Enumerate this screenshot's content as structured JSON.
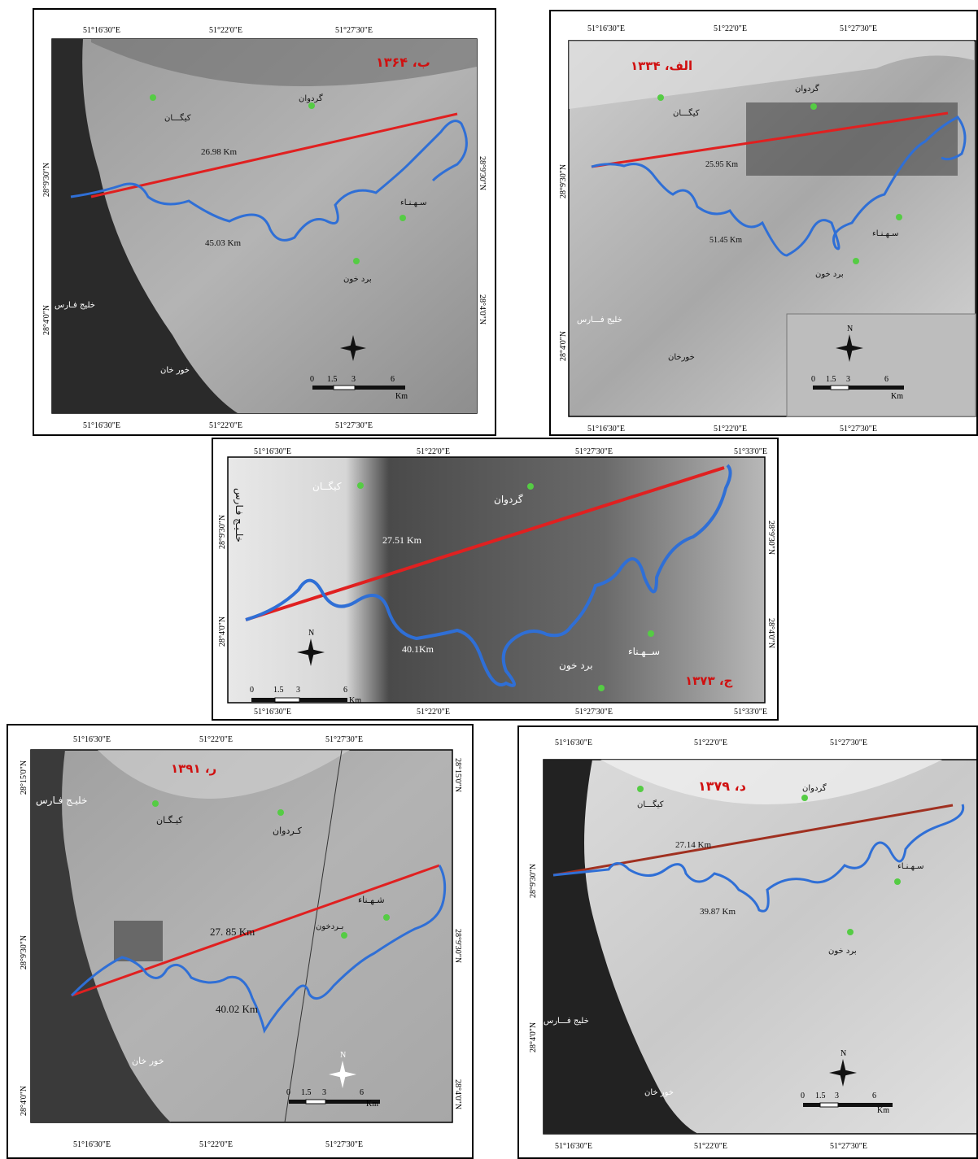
{
  "panels": {
    "b": {
      "title": "ب، ۱۳۶۴",
      "ticks_top": [
        "51°16'30\"E",
        "51°22'0\"E",
        "51°27'30\"E"
      ],
      "ticks_bottom": [
        "51°16'30\"E",
        "51°22'0\"E",
        "51°27'30\"E"
      ],
      "ticks_left": [
        "28°9'30\"N",
        "28°4'0\"N"
      ],
      "ticks_right": [
        "28°9'30\"N",
        "28°4'0\"N"
      ],
      "straight_distance": "26.98 Km",
      "river_distance": "45.03 Km",
      "places": {
        "kiyan": "کیگـــان",
        "gordavan": "گردوان",
        "sahnaa": "سـهـنـاء",
        "bardkhun": "برد خون",
        "gulf": "خلیج فـارس",
        "khurkhan": "خور خان"
      },
      "scale": [
        "0",
        "1.5",
        "3",
        "6",
        "Km"
      ]
    },
    "a": {
      "title": "الف، ۱۳۳۴",
      "ticks_top": [
        "51°16'30\"E",
        "51°22'0\"E",
        "51°27'30\"E"
      ],
      "ticks_bottom": [
        "51°16'30\"E",
        "51°22'0\"E",
        "51°27'30\"E"
      ],
      "ticks_left": [
        "28°9'30\"N",
        "28°4'0\"N"
      ],
      "ticks_right": [
        "28°9'30\"N",
        "28°4'0\"N"
      ],
      "straight_distance": "25.95 Km",
      "river_distance": "51.45 Km",
      "places": {
        "kiyan": "کیگـــان",
        "gordavan": "گردوان",
        "sahnaa": "سـهـنـاء",
        "bardkhun": "برد خون",
        "gulf": "خلیج فـــارس",
        "khurkhan": "خورخان"
      },
      "scale": [
        "0",
        "1.5",
        "3",
        "6",
        "Km"
      ],
      "north": "N"
    },
    "c": {
      "title": "ج، ۱۳۷۳",
      "ticks_top": [
        "51°16'30\"E",
        "51°22'0\"E",
        "51°27'30\"E",
        "51°33'0\"E"
      ],
      "ticks_bottom": [
        "51°16'30\"E",
        "51°22'0\"E",
        "51°27'30\"E",
        "51°33'0\"E"
      ],
      "ticks_left": [
        "28°9'30\"N",
        "28°4'0\"N"
      ],
      "ticks_right": [
        "28°9'30\"N",
        "28°4'0\"N"
      ],
      "straight_distance": "27.51 Km",
      "river_distance": "40.1Km",
      "places": {
        "kiyan": "کیگــان",
        "gordavan": "گردوان",
        "sahnaa": "ســهـناء",
        "bardkhun": "برد خون",
        "gulf": "خلـیـج فـارس"
      },
      "scale": [
        "0",
        "1.5",
        "3",
        "6",
        "Km"
      ],
      "north": "N"
    },
    "r": {
      "title": "ر، ۱۳۹۱",
      "ticks_top": [
        "51°16'30\"E",
        "51°22'0\"E",
        "51°27'30\"E"
      ],
      "ticks_bottom": [
        "51°16'30\"E",
        "51°22'0\"E",
        "51°27'30\"E"
      ],
      "ticks_left": [
        "28°15'0\"N",
        "28°9'30\"N",
        "28°4'0\"N"
      ],
      "ticks_right": [
        "28°15'0\"N",
        "28°9'30\"N",
        "28°4'0\"N"
      ],
      "straight_distance": "27. 85 Km",
      "river_distance": "40.02 Km",
      "places": {
        "kiyan": "کیـگـان",
        "gordavan": "کـردوان",
        "sahnaa": "شـهـناء",
        "bardkhun": "بـردخون",
        "gulf": "خلیـج فـارس",
        "khurkhan": "خور خان"
      },
      "scale": [
        "0",
        "1.5",
        "3",
        "6",
        "Km"
      ],
      "north": "N"
    },
    "d": {
      "title": "د، ۱۳۷۹",
      "ticks_top": [
        "51°16'30\"E",
        "51°22'0\"E",
        "51°27'30\"E"
      ],
      "ticks_bottom": [
        "51°16'30\"E",
        "51°22'0\"E",
        "51°27'30\"E"
      ],
      "ticks_left": [
        "28°9'30\"N",
        "28°4'0\"N"
      ],
      "straight_distance": "27.14 Km",
      "river_distance": "39.87 Km",
      "places": {
        "kiyan": "کیگـــان",
        "gordavan": "گردوان",
        "sahnaa": "سـهـنـاء",
        "bardkhun": "برد خون",
        "gulf": "خلیج فـــارس",
        "khurkhan": "خور خان"
      },
      "scale": [
        "0",
        "1.5",
        "3",
        "6",
        "Km"
      ],
      "north": "N"
    }
  },
  "colors": {
    "straight_line": "#e02020",
    "river": "#2f6fd6",
    "village": "#55cc44",
    "title": "#d01010"
  }
}
